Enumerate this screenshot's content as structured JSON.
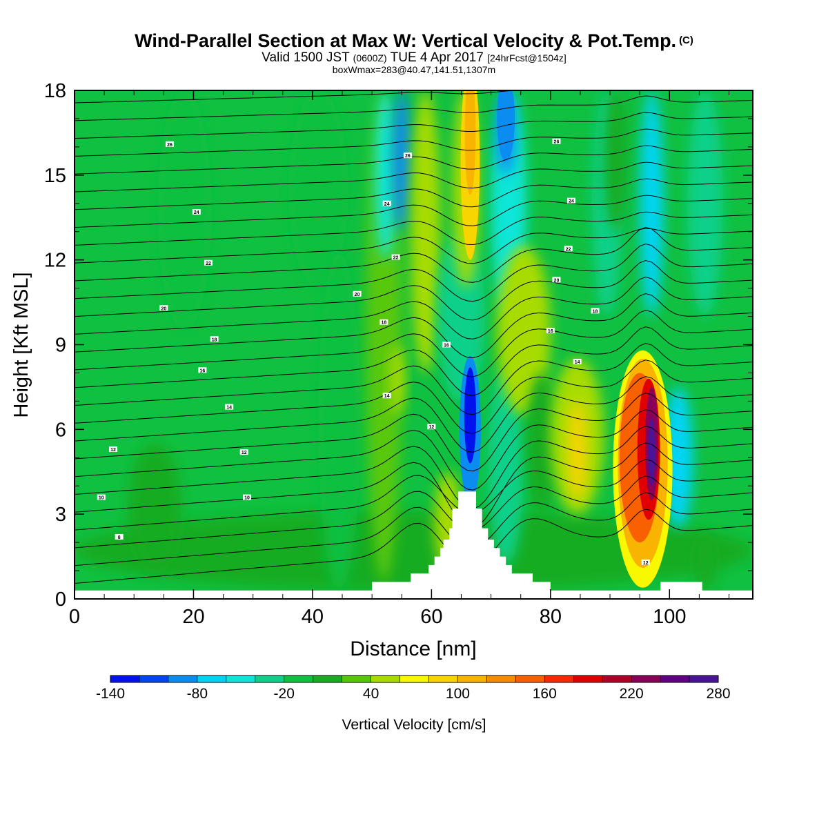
{
  "header": {
    "title": "Wind-Parallel Section at Max W: Vertical Velocity & Pot.Temp.",
    "title_mark": "(C)",
    "valid_prefix": "Valid 1500 JST",
    "valid_utc": "(0600Z)",
    "valid_date": "TUE 4 Apr 2017",
    "forecast": "[24hrFcst@1504z]",
    "boxline": "boxWmax=283@40.47,141.51,1307m"
  },
  "colorbar": {
    "label": "Vertical Velocity [cm/s]",
    "tick_labels": [
      "-140",
      "-80",
      "-20",
      "40",
      "100",
      "160",
      "220",
      "280"
    ],
    "levels": [
      -140,
      -120,
      -100,
      -80,
      -60,
      -40,
      -20,
      0,
      20,
      40,
      60,
      80,
      100,
      120,
      140,
      160,
      180,
      200,
      220,
      240,
      260,
      280
    ],
    "colors": [
      "#0012ee",
      "#0046f0",
      "#0a8cf0",
      "#00d4f4",
      "#10e6d8",
      "#10d08a",
      "#10c040",
      "#18ac22",
      "#58c808",
      "#a8dc00",
      "#f8f800",
      "#f8d400",
      "#f8b400",
      "#f88c00",
      "#f86000",
      "#f82800",
      "#e00000",
      "#b0002a",
      "#880058",
      "#600086",
      "#4a1496"
    ]
  },
  "chart_data": {
    "type": "contour",
    "title": "Wind-Parallel Section at Max W: Vertical Velocity & Pot.Temp.",
    "xlabel": "Distance [nm]",
    "ylabel": "Height [Kft MSL]",
    "xlim": [
      0,
      114
    ],
    "ylim": [
      0,
      18
    ],
    "x_ticks": [
      0,
      20,
      40,
      60,
      80,
      100
    ],
    "y_ticks": [
      0,
      3,
      6,
      9,
      12,
      15,
      18
    ],
    "x_tick_labels": [
      "0",
      "20",
      "40",
      "60",
      "80",
      "100"
    ],
    "y_tick_labels": [
      "0",
      "3",
      "6",
      "9",
      "12",
      "15",
      "18"
    ],
    "fill_variable": "Vertical Velocity [cm/s]",
    "contour_variable": "Pot.Temp.",
    "vertical_velocity_features": [
      {
        "x": 97,
        "y": 5.5,
        "value": 283,
        "note": "max updraft"
      },
      {
        "x": 93.5,
        "y": 5.5,
        "value": 150
      },
      {
        "x": 66.5,
        "y": 6.5,
        "value": -120,
        "note": "lee downdraft"
      },
      {
        "x": 72.5,
        "y": 17,
        "value": -90
      },
      {
        "x": 66.5,
        "y": 16,
        "value": 90
      },
      {
        "x": 101,
        "y": 4.5,
        "value": -60
      },
      {
        "x": 52,
        "y": 16,
        "value": -60
      }
    ],
    "terrain": [
      [
        0,
        0.3
      ],
      [
        50,
        0.3
      ],
      [
        50,
        0.6
      ],
      [
        56.5,
        0.6
      ],
      [
        56.5,
        0.9
      ],
      [
        59.5,
        0.9
      ],
      [
        59.5,
        1.2
      ],
      [
        60.5,
        1.2
      ],
      [
        60.5,
        1.5
      ],
      [
        61.5,
        1.5
      ],
      [
        61.5,
        1.8
      ],
      [
        62,
        1.8
      ],
      [
        62,
        2.1
      ],
      [
        63,
        2.1
      ],
      [
        63,
        2.5
      ],
      [
        63.5,
        2.5
      ],
      [
        63.5,
        3.2
      ],
      [
        64.5,
        3.2
      ],
      [
        64.5,
        3.8
      ],
      [
        67.5,
        3.8
      ],
      [
        67.5,
        3.2
      ],
      [
        68.5,
        3.2
      ],
      [
        68.5,
        2.5
      ],
      [
        69.5,
        2.5
      ],
      [
        69.5,
        2.1
      ],
      [
        70.5,
        2.1
      ],
      [
        70.5,
        1.8
      ],
      [
        71.5,
        1.8
      ],
      [
        71.5,
        1.5
      ],
      [
        72.5,
        1.5
      ],
      [
        72.5,
        1.2
      ],
      [
        73.5,
        1.2
      ],
      [
        73.5,
        0.9
      ],
      [
        77,
        0.9
      ],
      [
        77,
        0.6
      ],
      [
        80,
        0.6
      ],
      [
        80,
        0.3
      ],
      [
        98.5,
        0.3
      ],
      [
        98.5,
        0.6
      ],
      [
        105.5,
        0.6
      ],
      [
        105.5,
        0.3
      ],
      [
        114,
        0.3
      ]
    ],
    "contour_labels": [
      {
        "text": "26",
        "x": 16,
        "y": 16.1
      },
      {
        "text": "26",
        "x": 56,
        "y": 15.7
      },
      {
        "text": "26",
        "x": 81,
        "y": 16.2
      },
      {
        "text": "24",
        "x": 20.5,
        "y": 13.7
      },
      {
        "text": "24",
        "x": 52.5,
        "y": 14.0
      },
      {
        "text": "24",
        "x": 83.5,
        "y": 14.1
      },
      {
        "text": "22",
        "x": 22.5,
        "y": 11.9
      },
      {
        "text": "22",
        "x": 54,
        "y": 12.1
      },
      {
        "text": "22",
        "x": 83,
        "y": 12.4
      },
      {
        "text": "20",
        "x": 15,
        "y": 10.3
      },
      {
        "text": "20",
        "x": 47.5,
        "y": 10.8
      },
      {
        "text": "20",
        "x": 81,
        "y": 11.3
      },
      {
        "text": "18",
        "x": 23.5,
        "y": 9.2
      },
      {
        "text": "18",
        "x": 52,
        "y": 9.8
      },
      {
        "text": "18",
        "x": 87.5,
        "y": 10.2
      },
      {
        "text": "16",
        "x": 21.5,
        "y": 8.1
      },
      {
        "text": "16",
        "x": 62.5,
        "y": 9.0
      },
      {
        "text": "16",
        "x": 80,
        "y": 9.5
      },
      {
        "text": "14",
        "x": 26,
        "y": 6.8
      },
      {
        "text": "14",
        "x": 52.5,
        "y": 7.2
      },
      {
        "text": "14",
        "x": 84.5,
        "y": 8.4
      },
      {
        "text": "12",
        "x": 6.5,
        "y": 5.3
      },
      {
        "text": "12",
        "x": 28.5,
        "y": 5.2
      },
      {
        "text": "12",
        "x": 60,
        "y": 6.1
      },
      {
        "text": "12",
        "x": 96,
        "y": 1.3
      },
      {
        "text": "10",
        "x": 4.5,
        "y": 3.6
      },
      {
        "text": "10",
        "x": 29,
        "y": 3.6
      },
      {
        "text": "8",
        "x": 7.5,
        "y": 2.2
      }
    ]
  }
}
